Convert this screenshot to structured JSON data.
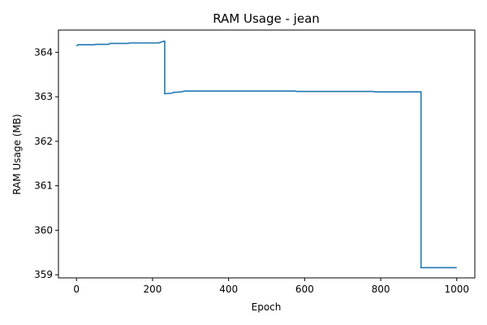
{
  "chart_data": {
    "type": "line",
    "title": "RAM Usage - jean",
    "xlabel": "Epoch",
    "ylabel": "RAM Usage (MB)",
    "xlim": [
      -47.5,
      1047.5
    ],
    "ylim": [
      358.93,
      364.5
    ],
    "xticks": [
      0,
      200,
      400,
      600,
      800,
      1000
    ],
    "xtick_labels": [
      "0",
      "200",
      "400",
      "600",
      "800",
      "1000"
    ],
    "yticks": [
      359,
      360,
      361,
      362,
      363,
      364
    ],
    "ytick_labels": [
      "359",
      "360",
      "361",
      "362",
      "363",
      "364"
    ],
    "grid": false,
    "legend": "none",
    "series": [
      {
        "color": "#1f77b4",
        "x": [
          0,
          2,
          5,
          48,
          50,
          85,
          88,
          135,
          140,
          215,
          220,
          226,
          230,
          232,
          232,
          250,
          255,
          258,
          275,
          280,
          285,
          290,
          575,
          580,
          780,
          785,
          905,
          906,
          906,
          1000
        ],
        "y": [
          364.14,
          364.16,
          364.17,
          364.17,
          364.18,
          364.18,
          364.2,
          364.2,
          364.21,
          364.21,
          364.22,
          364.24,
          364.25,
          364.25,
          363.07,
          363.08,
          363.1,
          363.1,
          363.11,
          363.12,
          363.13,
          363.13,
          363.13,
          363.12,
          363.12,
          363.11,
          363.11,
          363.11,
          359.16,
          359.16
        ]
      }
    ]
  }
}
